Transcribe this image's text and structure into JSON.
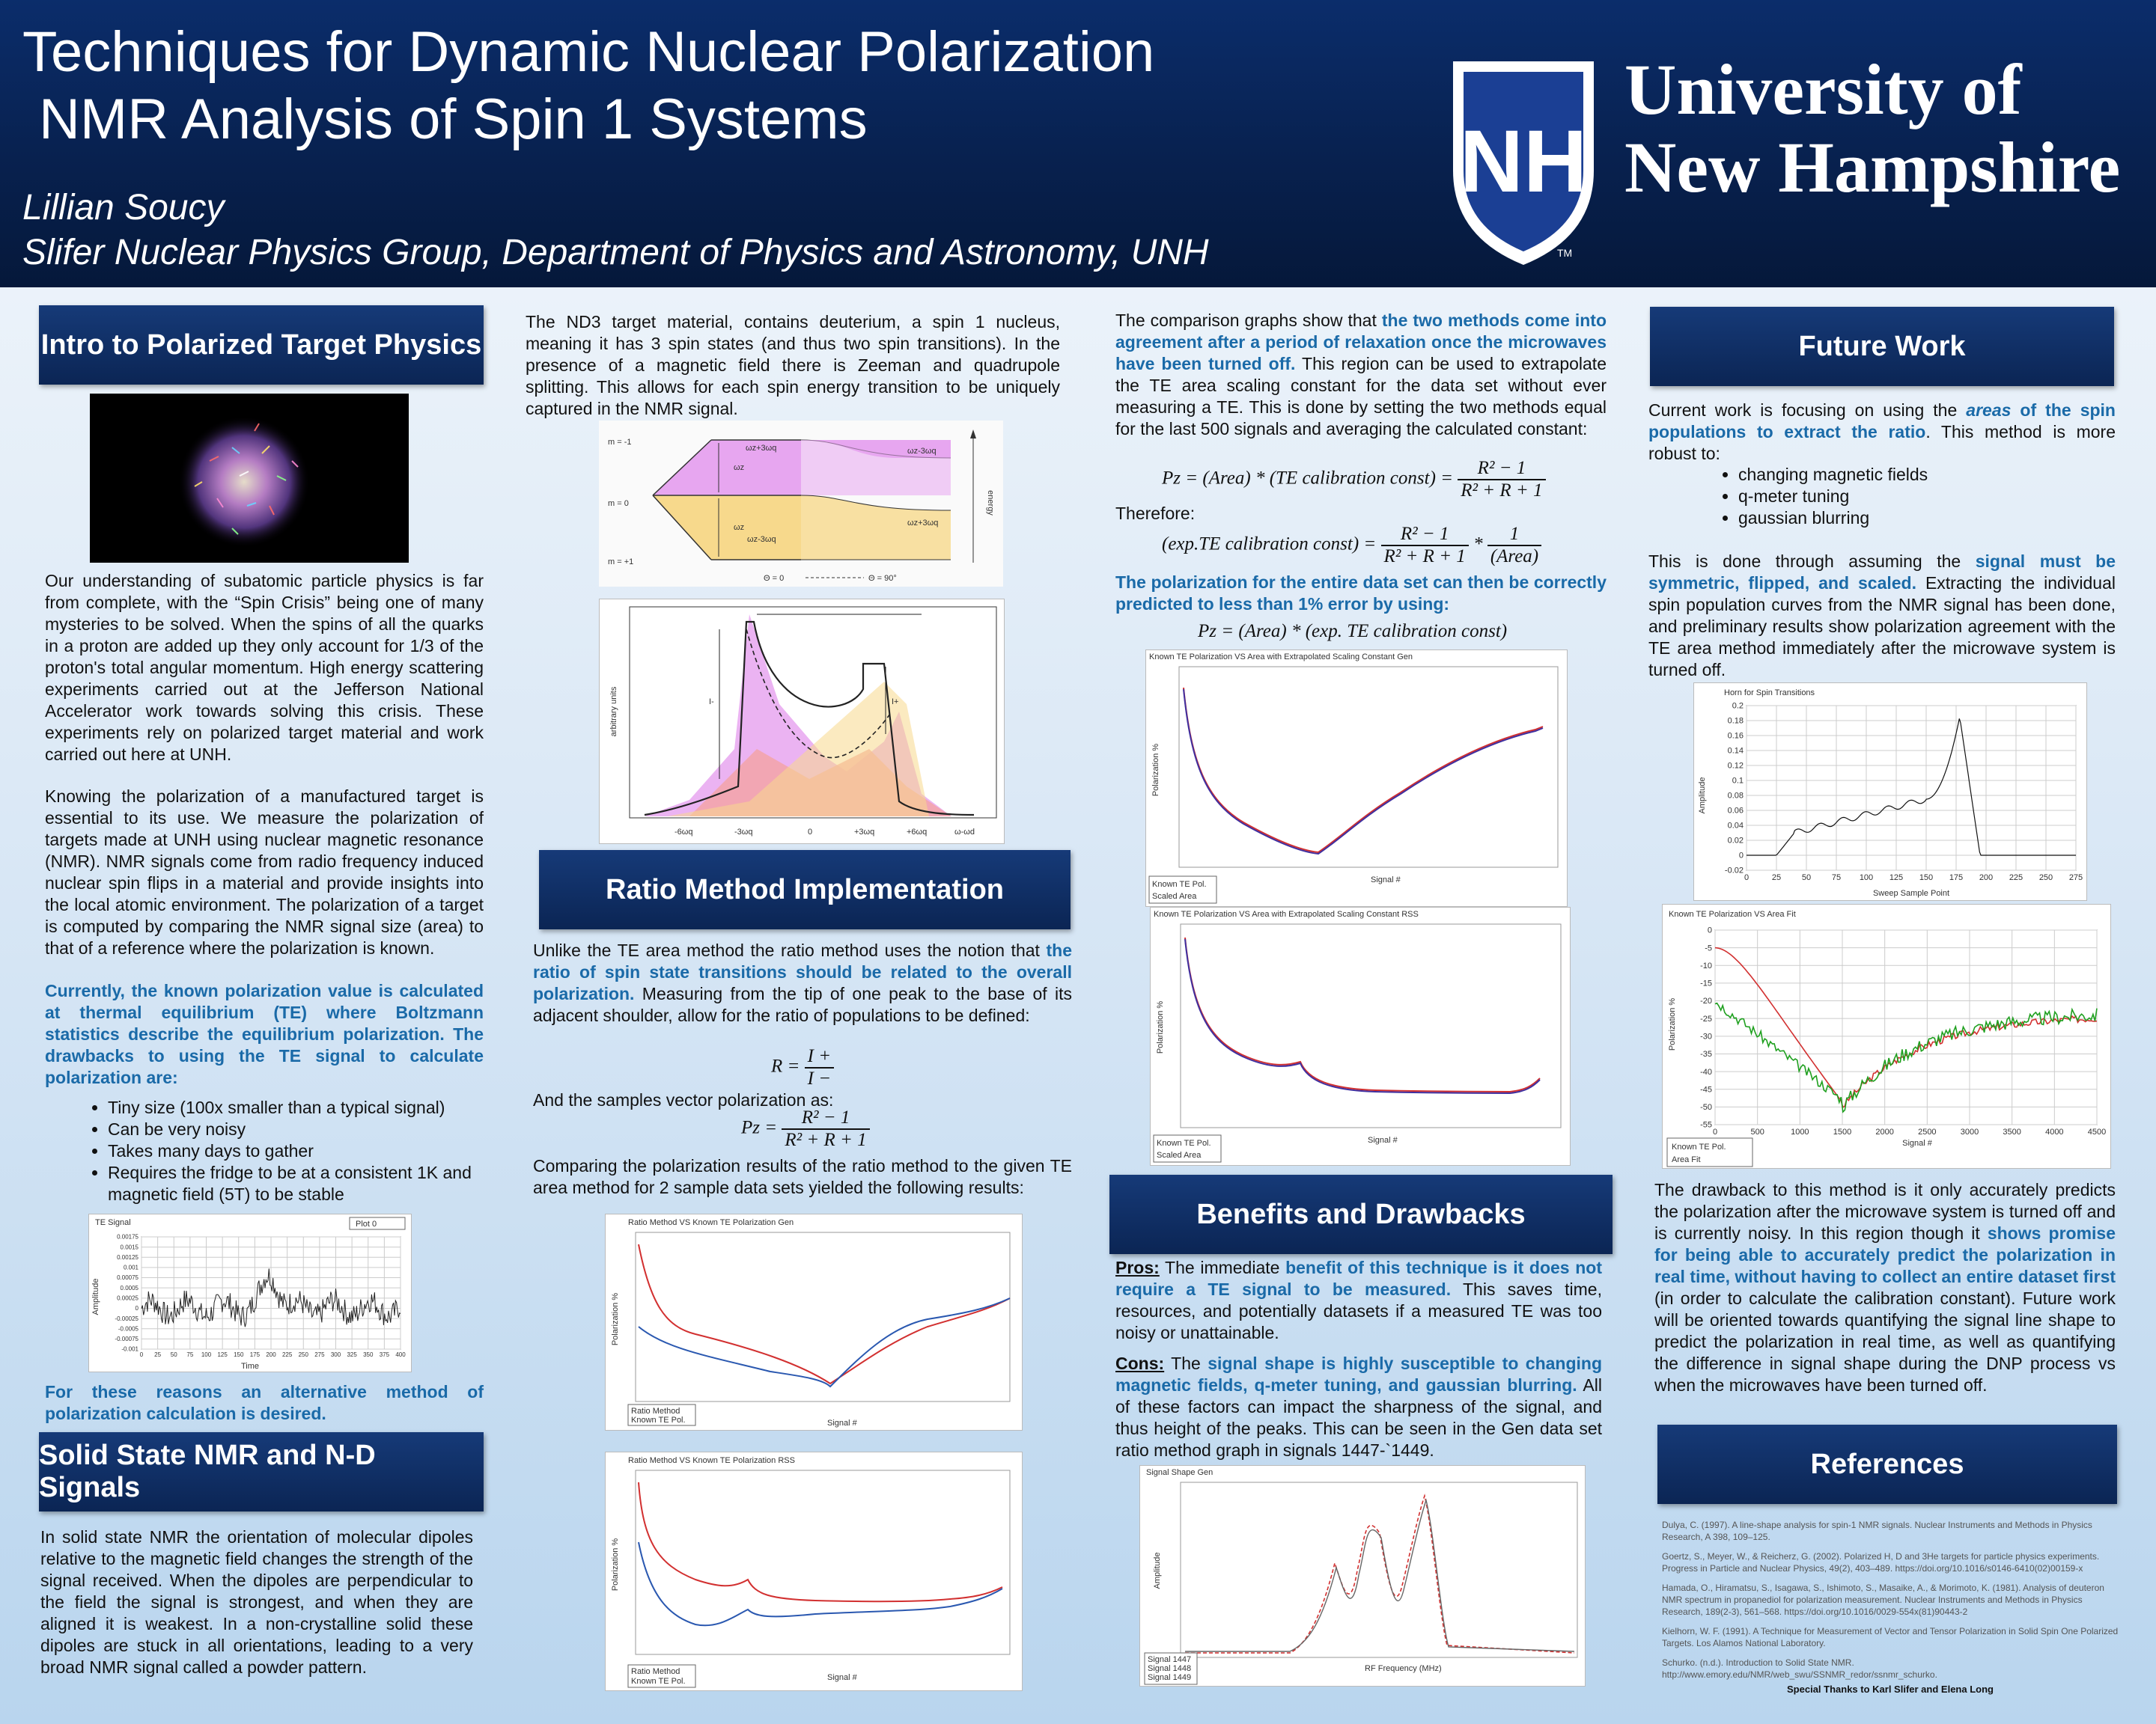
{
  "header": {
    "title_line1": "Techniques for Dynamic Nuclear Polarization",
    "title_line2": "NMR Analysis of Spin 1 Systems",
    "author": "Lillian Soucy",
    "affiliation": "Slifer Nuclear Physics Group, Department of Physics and Astronomy, UNH",
    "logo_letters": "NH",
    "university_line1": "University of",
    "university_line2": "New Hampshire",
    "tm": "TM"
  },
  "intro": {
    "heading": "Intro to Polarized Target Physics",
    "p1": "Our understanding of subatomic particle physics is far from complete, with the “Spin Crisis” being one of many mysteries to be solved. When the spins of all the quarks in a proton are added up they only account for 1/3 of the proton's total angular momentum. High energy scattering experiments carried out at the Jefferson National Accelerator work towards solving this crisis. These experiments rely on polarized target material and work carried out here at UNH.",
    "p2": "Knowing the polarization of a manufactured target is essential to its use. We measure the polarization of targets made at UNH using nuclear magnetic resonance (NMR).  NMR signals come from radio frequency induced nuclear spin flips in a material and provide insights into the local atomic environment. The polarization of a target is computed by comparing the NMR signal size (area) to that of a reference where the polarization is known.",
    "p2_highlight": "Currently, the known polarization value is calculated at thermal equilibrium (TE) where Boltzmann statistics describe the equilibrium polarization. The drawbacks to using the TE signal to calculate polarization are:",
    "bullets": [
      "Tiny size (100x smaller than a typical signal)",
      "Can be very noisy",
      "Takes many days to gather",
      "Requires the fridge to be at a consistent 1K and magnetic field (5T) to be stable"
    ],
    "te_chart_title": "TE Signal",
    "te_chart_legend": "Plot 0",
    "te_chart_xlabel": "Time",
    "te_chart_ylabel": "Amplitude",
    "closing": "For these reasons an alternative method of polarization calculation is desired."
  },
  "solid_state": {
    "heading": "Solid State NMR and N-D Signals",
    "p1": "In solid state NMR the orientation of molecular dipoles relative to the magnetic field changes the strength of the signal received. When the dipoles are perpendicular to the field the signal is strongest, and when they are aligned it is weakest. In a non-crystalline solid these dipoles are stuck in all orientations, leading to a very broad NMR signal called a powder pattern."
  },
  "nd3": {
    "p1": "The ND3 target material, contains deuterium, a spin 1 nucleus, meaning it has 3 spin states (and thus two spin transitions). In the presence of a magnetic field there is Zeeman and quadrupole splitting. This allows for each spin energy transition to be uniquely captured in the NMR signal.",
    "level_labels": [
      "m = -1",
      "m = 0",
      "m = +1"
    ],
    "energy_label": "energy",
    "theta0": "Θ = 0",
    "theta90": "Θ = 90°",
    "wz": "ωz",
    "wq_plus": "ωz+3ωq",
    "wq_minus": "ωz-3ωq",
    "wq_plus_r": "ωz+3ωq",
    "wq_minus_r": "ωz-3ωq",
    "powder_ylabel": "arbitrary units",
    "powder_ticks": [
      "-6ωq",
      "-3ωq",
      "0",
      "+3ωq",
      "+6ωq",
      "ω-ωd"
    ],
    "i_plus": "I+",
    "i_minus": "I-"
  },
  "ratio": {
    "heading": "Ratio Method Implementation",
    "p1_start": "Unlike the TE area method the ratio method uses the notion that ",
    "p1_hl": "the ratio of spin state transitions should be related to the overall polarization.",
    "p1_end": " Measuring from the tip of one peak to the base of its adjacent shoulder, allow for the ratio of populations to be defined:",
    "eq_r_lhs": "R =",
    "eq_r_num": "I +",
    "eq_r_den": "I −",
    "p2": "And the samples vector polarization as:",
    "eq_p_lhs": "Pz =",
    "eq_p_num": "R² − 1",
    "eq_p_den": "R² + R + 1",
    "p3": "Comparing the polarization results of the ratio method to the given TE area method for 2 sample data sets yielded the following results:",
    "chart1_title": "Ratio Method VS Known TE Polarization Gen",
    "chart2_title": "Ratio Method VS Known TE Polarization RSS",
    "legend_ratio": "Ratio Method",
    "legend_known": "Known TE Pol.",
    "xlabel": "Signal #",
    "ylabel": "Polarization %"
  },
  "comparison": {
    "p1_start": "The comparison graphs show that ",
    "p1_hl": "the two methods come into agreement after a period of relaxation once the microwaves have been turned off.",
    "p1_end": " This region can be used to extrapolate the TE area scaling constant for the data set without ever measuring a TE. This is done by setting the two methods equal for the last 500 signals and averaging the calculated constant:",
    "eq1_lhs": "Pz = (Area) * (TE calibration const) =",
    "eq1_num": "R² − 1",
    "eq1_den": "R² + R + 1",
    "therefore": "Therefore:",
    "eq2_lhs": "(exp.TE calibration const) =",
    "eq2_num": "R² − 1",
    "eq2_den": "R² + R + 1",
    "eq2_mult": "*",
    "eq2_num2": "1",
    "eq2_den2": "(Area)",
    "p2_hl": "The polarization for the entire data set can then be correctly predicted to less than 1% error by using:",
    "eq3": "Pz = (Area) * (exp. TE calibration const)",
    "chart1_title": "Known TE Polarization VS Area with Extrapolated Scaling Constant Gen",
    "chart2_title": "Known TE Polarization VS Area with Extrapolated Scaling Constant RSS",
    "legend_known": "Known TE Pol.",
    "legend_scaled": "Scaled Area",
    "xlabel": "Signal #",
    "ylabel": "Polarization %"
  },
  "benefits": {
    "heading": "Benefits and Drawbacks",
    "pros_label": "Pros:",
    "pros_start": " The immediate ",
    "pros_hl": "benefit of this technique is it does not require a TE signal to be measured.",
    "pros_end": " This saves time, resources, and potentially datasets if a measured TE was too noisy or unattainable.",
    "cons_label": "Cons:",
    "cons_start": " The ",
    "cons_hl": "signal shape is highly susceptible to changing magnetic fields, q-meter tuning, and gaussian blurring.",
    "cons_end": " All of these factors can impact the sharpness of the signal, and thus height of the peaks. This can be seen in the Gen data set ratio method graph in signals 1447-`1449.",
    "chart_title": "Signal Shape Gen",
    "legend": [
      "Signal 1447",
      "Signal 1448",
      "Signal 1449"
    ],
    "xlabel": "RF Frequency (MHz)",
    "ylabel": "Amplitude"
  },
  "future": {
    "heading": "Future Work",
    "p1_start": "Current work is focusing on using the ",
    "p1_hl_italic": "areas",
    "p1_hl": " of the spin populations to extract the ratio",
    "p1_end": ". This method is more robust to:",
    "bullets": [
      "changing magnetic fields",
      "q-meter tuning",
      "gaussian blurring"
    ],
    "p2_start": "This is done through assuming the ",
    "p2_hl": "signal must be symmetric, flipped, and scaled.",
    "p2_end": " Extracting the individual spin population curves from the NMR signal has been done, and preliminary results show polarization agreement with the TE area method immediately after the microwave system is turned off.",
    "horn_title": "Horn for Spin Transitions",
    "horn_xlabel": "Sweep Sample Point",
    "horn_ylabel": "Amplitude",
    "area_title": "Known TE Polarization VS Area Fit",
    "area_xlabel": "Signal #",
    "area_ylabel": "Polarization %",
    "legend_known": "Known TE Pol.",
    "legend_fit": "Area Fit",
    "p3_start": "The drawback to this method is it only accurately predicts the polarization after the microwave system is turned off and is currently noisy. In this region though it ",
    "p3_hl": "shows promise for being able to accurately predict the polarization in real time, without having to collect an entire dataset first",
    "p3_end": " (in order to calculate the calibration constant). Future work will be oriented towards quantifying the signal line shape to predict the polarization in real time, as well as quantifying the difference in signal shape during the DNP process vs when the microwaves have been turned off."
  },
  "references": {
    "heading": "References",
    "items": [
      "Dulya, C. (1997). A line-shape analysis for spin-1 NMR signals. Nuclear Instruments and Methods in Physics Research, A 398, 109–125.",
      "Goertz, S., Meyer, W., & Reicherz, G. (2002). Polarized H, D and 3He targets for particle physics experiments. Progress in Particle and Nuclear Physics, 49(2), 403–489. https://doi.org/10.1016/s0146-6410(02)00159-x",
      "Hamada, O., Hiramatsu, S., Isagawa, S., Ishimoto, S., Masaike, A., & Morimoto, K. (1981). Analysis of deuteron NMR spectrum in propanediol for polarization measurement. Nuclear Instruments and Methods in Physics Research, 189(2-3), 561–568. https://doi.org/10.1016/0029-554x(81)90443-2",
      "Kielhorn, W. F. (1991). A Technique for Measurement of Vector and Tensor Polarization in Solid Spin One Polarized Targets. Los Alamos National Laboratory.",
      "Schurko. (n.d.). Introduction to Solid State NMR. http://www.emory.edu/NMR/web_swu/SSNMR_redor/ssnmr_schurko."
    ],
    "thanks": "Special Thanks to Karl Slifer and Elena Long"
  },
  "chart_data": [
    {
      "type": "line",
      "title": "TE Signal",
      "xlabel": "Time",
      "ylabel": "Amplitude",
      "legend": [
        "Plot 0"
      ],
      "xlim": [
        0,
        400
      ],
      "ylim": [
        -0.001,
        0.00175
      ],
      "x_ticks": [
        "0",
        "25",
        "50",
        "75",
        "100",
        "125",
        "150",
        "175",
        "200",
        "225",
        "250",
        "275",
        "300",
        "325",
        "350",
        "375",
        "400"
      ],
      "y_ticks": [
        "0.00175",
        "0.0015",
        "0.00125",
        "0.001",
        "0.00075",
        "0.0005",
        "0.00025",
        "0",
        "-0.00025",
        "-0.0005",
        "-0.00075",
        "-0.001"
      ]
    },
    {
      "type": "line",
      "title": "Horn for Spin Transitions",
      "xlabel": "Sweep Sample Point",
      "ylabel": "Amplitude",
      "xlim": [
        0,
        275
      ],
      "ylim": [
        -0.02,
        0.2
      ],
      "x_ticks": [
        "0",
        "25",
        "50",
        "75",
        "100",
        "125",
        "150",
        "175",
        "200",
        "225",
        "250",
        "275"
      ],
      "y_ticks": [
        "0.2",
        "0.18",
        "0.16",
        "0.14",
        "0.12",
        "0.1",
        "0.08",
        "0.06",
        "0.04",
        "0.02",
        "0",
        "-0.02"
      ]
    },
    {
      "type": "line",
      "title": "Known TE Polarization VS Area Fit",
      "xlabel": "Signal #",
      "ylabel": "Polarization %",
      "legend": [
        "Known TE Pol.",
        "Area Fit"
      ],
      "xlim": [
        0,
        4500
      ],
      "ylim": [
        -55,
        0
      ],
      "x_ticks": [
        "0",
        "500",
        "1000",
        "1500",
        "2000",
        "2500",
        "3000",
        "3500",
        "4000",
        "4500"
      ],
      "y_ticks": [
        "0",
        "-5",
        "-10",
        "-15",
        "-20",
        "-25",
        "-30",
        "-35",
        "-40",
        "-45",
        "-50",
        "-55"
      ]
    }
  ]
}
